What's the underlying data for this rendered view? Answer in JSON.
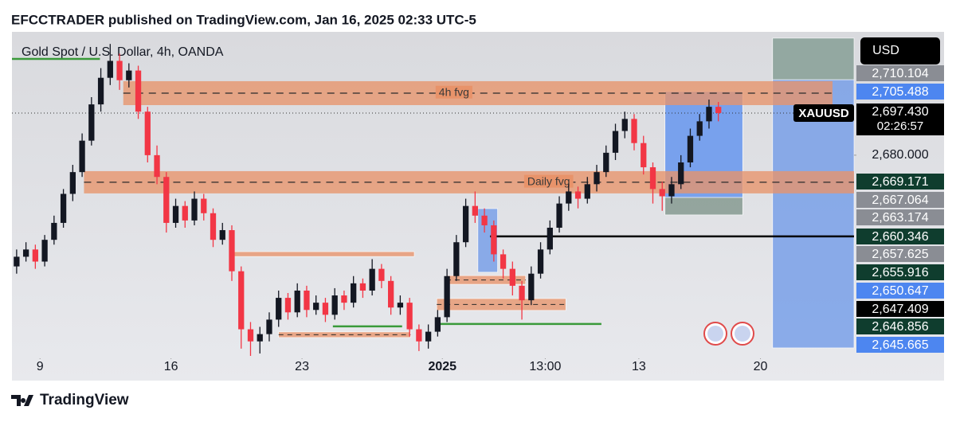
{
  "header": {
    "title": "EFCCTRADER published on TradingView.com, Jan 16, 2025 02:33 UTC-5"
  },
  "footer": {
    "brand": "TradingView"
  },
  "chart_data": {
    "type": "candlestick",
    "title": "Gold Spot / U.S. Dollar, 4h, OANDA",
    "currency": "USD",
    "symbol": "XAUUSD",
    "countdown": "02:26:57",
    "up_color": "#131722",
    "down_color": "#f23645",
    "xlim": [
      0,
      90
    ],
    "ylim": [
      2596,
      2731
    ],
    "xticks": [
      {
        "value": 3,
        "label": "9"
      },
      {
        "value": 17,
        "label": "16"
      },
      {
        "value": 31,
        "label": "23"
      },
      {
        "value": 46,
        "label": "2025"
      },
      {
        "value": 57,
        "label": "13:00"
      },
      {
        "value": 67,
        "label": "13"
      },
      {
        "value": 80,
        "label": "20"
      }
    ],
    "yticks": [
      {
        "value": 2680,
        "label": "2,680.000"
      }
    ],
    "last_price": {
      "value": 2697.43,
      "label": "2,697.430"
    },
    "series": [
      {
        "name": "XAUUSD",
        "open": [
          2634,
          2638,
          2641,
          2636,
          2645,
          2652,
          2664,
          2673,
          2686,
          2701,
          2712,
          2719,
          2711,
          2715,
          2698,
          2680,
          2671,
          2652,
          2659,
          2653,
          2662,
          2656,
          2645,
          2649,
          2632,
          2608,
          2603,
          2606,
          2612,
          2621,
          2615,
          2624,
          2616,
          2619,
          2614,
          2622,
          2619,
          2627,
          2624,
          2633,
          2628,
          2617,
          2619,
          2608,
          2603,
          2607,
          2613,
          2630,
          2644,
          2659,
          2655,
          2651,
          2639,
          2633,
          2626,
          2620,
          2631,
          2641,
          2650,
          2660,
          2665,
          2662,
          2668,
          2673,
          2681,
          2690,
          2695,
          2685,
          2675,
          2666,
          2663,
          2668,
          2677,
          2688,
          2694,
          2700
        ],
        "high": [
          2641,
          2644,
          2643,
          2647,
          2655,
          2666,
          2676,
          2689,
          2704,
          2716,
          2726,
          2722,
          2718,
          2717,
          2700,
          2684,
          2673,
          2662,
          2661,
          2665,
          2664,
          2658,
          2652,
          2651,
          2634,
          2611,
          2609,
          2615,
          2624,
          2623,
          2627,
          2626,
          2622,
          2621,
          2625,
          2624,
          2630,
          2629,
          2637,
          2635,
          2630,
          2622,
          2621,
          2610,
          2610,
          2616,
          2633,
          2647,
          2662,
          2665,
          2658,
          2653,
          2641,
          2636,
          2628,
          2634,
          2644,
          2653,
          2663,
          2668,
          2667,
          2671,
          2676,
          2684,
          2693,
          2698,
          2697,
          2688,
          2677,
          2669,
          2671,
          2680,
          2691,
          2697,
          2703,
          2702
        ],
        "low": [
          2631,
          2636,
          2633,
          2634,
          2643,
          2650,
          2661,
          2671,
          2684,
          2698,
          2709,
          2707,
          2708,
          2695,
          2677,
          2668,
          2648,
          2650,
          2650,
          2651,
          2653,
          2642,
          2643,
          2628,
          2600,
          2597,
          2598,
          2603,
          2609,
          2612,
          2613,
          2613,
          2614,
          2611,
          2612,
          2616,
          2617,
          2621,
          2622,
          2625,
          2614,
          2614,
          2605,
          2599,
          2600,
          2605,
          2611,
          2628,
          2642,
          2652,
          2648,
          2636,
          2629,
          2622,
          2612,
          2618,
          2629,
          2639,
          2648,
          2657,
          2658,
          2660,
          2665,
          2671,
          2678,
          2687,
          2682,
          2672,
          2660,
          2657,
          2660,
          2666,
          2675,
          2686,
          2691,
          2694
        ],
        "close": [
          2638,
          2641,
          2636,
          2645,
          2652,
          2664,
          2673,
          2686,
          2701,
          2712,
          2719,
          2711,
          2715,
          2698,
          2680,
          2671,
          2652,
          2659,
          2653,
          2662,
          2656,
          2645,
          2649,
          2632,
          2608,
          2603,
          2606,
          2612,
          2621,
          2615,
          2624,
          2616,
          2619,
          2614,
          2622,
          2619,
          2627,
          2624,
          2633,
          2628,
          2617,
          2619,
          2608,
          2603,
          2607,
          2613,
          2630,
          2644,
          2659,
          2655,
          2651,
          2639,
          2633,
          2626,
          2620,
          2631,
          2641,
          2650,
          2660,
          2665,
          2662,
          2668,
          2673,
          2681,
          2690,
          2695,
          2685,
          2675,
          2666,
          2663,
          2668,
          2677,
          2688,
          2694,
          2700,
          2697.43
        ]
      }
    ],
    "drawings": [
      {
        "kind": "zone",
        "x": [
          81.3,
          90
        ],
        "y": [
          2711.2,
          2728.4
        ],
        "color": "#7f9a8f"
      },
      {
        "kind": "zone",
        "x": [
          81.3,
          90
        ],
        "y": [
          2600.3,
          2711.2
        ],
        "color": "#6f9ae8"
      },
      {
        "kind": "zone",
        "x": [
          69.8,
          78.1
        ],
        "y": [
          2662.5,
          2706.3
        ],
        "color": "#5b8ff0"
      },
      {
        "kind": "zone",
        "x": [
          69.8,
          78.1
        ],
        "y": [
          2655.3,
          2662.5
        ],
        "color": "#7d9389"
      },
      {
        "kind": "zone",
        "x": [
          49.8,
          51.9
        ],
        "y": [
          2631.6,
          2657.9
        ],
        "color": "#6f9ae8"
      },
      {
        "kind": "zone",
        "x": [
          11.9,
          87.7
        ],
        "y": [
          2700.7,
          2710.6
        ],
        "color": "#e8936a",
        "label": "4h fvg"
      },
      {
        "kind": "zone",
        "x": [
          7.7,
          90
        ],
        "y": [
          2664.2,
          2673.4
        ],
        "color": "#e8936a",
        "label": "Daily fvg"
      },
      {
        "kind": "zone",
        "x": [
          23.4,
          43
        ],
        "y": [
          2638.1,
          2640.1
        ],
        "color": "#e8936a"
      },
      {
        "kind": "zone",
        "x": [
          28.5,
          42.6
        ],
        "y": [
          2604.6,
          2606.9
        ],
        "color": "#e8936a"
      },
      {
        "kind": "zone",
        "x": [
          46.4,
          54.9
        ],
        "y": [
          2626.6,
          2630.2
        ],
        "color": "#e8936a"
      },
      {
        "kind": "zone",
        "x": [
          45.4,
          59.2
        ],
        "y": [
          2615.8,
          2620.7
        ],
        "color": "#e8936a"
      },
      {
        "kind": "line",
        "x": [
          0,
          9.4
        ],
        "y": [
          2719.8,
          2719.8
        ],
        "color": "#3a9a3a"
      },
      {
        "kind": "line",
        "x": [
          34.3,
          41.7
        ],
        "y": [
          2609.2,
          2609.2
        ],
        "color": "#3a9a3a"
      },
      {
        "kind": "line",
        "x": [
          45.4,
          63
        ],
        "y": [
          2610.2,
          2610.2
        ],
        "color": "#3a9a3a"
      },
      {
        "kind": "line",
        "x": [
          51.1,
          90
        ],
        "y": [
          2646.4,
          2646.4
        ],
        "color": "#000000"
      }
    ],
    "price_badges": [
      {
        "value": 2710.104,
        "label": "2,710.104",
        "color": "#8a8d94"
      },
      {
        "value": 2705.488,
        "label": "2,705.488",
        "color": "#4d86f0"
      },
      {
        "value": 2669.171,
        "label": "2,669.171",
        "color": "#0f3d2e"
      },
      {
        "value": 2667.064,
        "label": "2,667.064",
        "color": "#8a8d94"
      },
      {
        "value": 2663.174,
        "label": "2,663.174",
        "color": "#8a8d94"
      },
      {
        "value": 2660.346,
        "label": "2,660.346",
        "color": "#0f3d2e"
      },
      {
        "value": 2657.625,
        "label": "2,657.625",
        "color": "#8a8d94"
      },
      {
        "value": 2655.916,
        "label": "2,655.916",
        "color": "#0f3d2e"
      },
      {
        "value": 2650.647,
        "label": "2,650.647",
        "color": "#4d86f0"
      },
      {
        "value": 2647.409,
        "label": "2,647.409",
        "color": "#000000"
      },
      {
        "value": 2646.856,
        "label": "2,646.856",
        "color": "#0f3d2e"
      },
      {
        "value": 2645.665,
        "label": "2,645.665",
        "color": "#4d86f0"
      }
    ]
  }
}
